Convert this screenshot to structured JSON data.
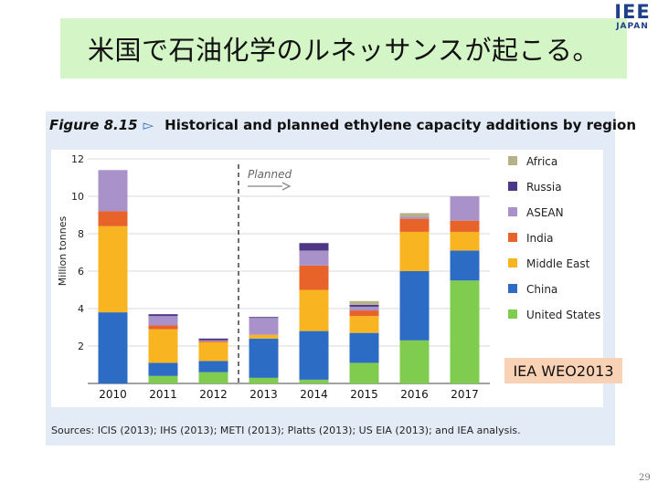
{
  "slide": {
    "title": "米国で石油化学のルネッサンスが起こる。",
    "logo_line1": "IEE",
    "logo_line2": "JAPAN",
    "source_badge": "IEA WEO2013",
    "page_number": "29"
  },
  "figure": {
    "number": "Figure 8.15",
    "marker": "▻",
    "caption": "Historical and planned ethylene capacity additions by region",
    "sources": "Sources: ICIS (2013); IHS (2013); METI (2013); Platts (2013); US EIA (2013); and IEA analysis."
  },
  "chart_data": {
    "type": "bar",
    "stacked": true,
    "categories": [
      "2010",
      "2011",
      "2012",
      "2013",
      "2014",
      "2015",
      "2016",
      "2017"
    ],
    "ylabel": "Million tonnes",
    "ylim": [
      0,
      12
    ],
    "yticks": [
      2,
      4,
      6,
      8,
      10,
      12
    ],
    "annotation": "Planned",
    "planned_from": "2013",
    "legend_position": "right",
    "series": [
      {
        "name": "United States",
        "color": "#7fcc4f",
        "values": [
          0,
          0.4,
          0.6,
          0.3,
          0.2,
          1.1,
          2.3,
          5.5
        ]
      },
      {
        "name": "China",
        "color": "#2c6cc4",
        "values": [
          3.8,
          0.7,
          0.6,
          2.1,
          2.6,
          1.6,
          3.7,
          1.6
        ]
      },
      {
        "name": "Middle East",
        "color": "#f8b521",
        "values": [
          4.6,
          1.8,
          1.0,
          0.2,
          2.2,
          0.9,
          2.1,
          1.0
        ]
      },
      {
        "name": "India",
        "color": "#e8632a",
        "values": [
          0.8,
          0.2,
          0.05,
          0,
          1.3,
          0.3,
          0.7,
          0.6
        ]
      },
      {
        "name": "ASEAN",
        "color": "#a992c9",
        "values": [
          2.2,
          0.5,
          0.05,
          0.9,
          0.8,
          0.2,
          0.1,
          1.3
        ]
      },
      {
        "name": "Russia",
        "color": "#4e3886",
        "values": [
          0,
          0.1,
          0.1,
          0.05,
          0.4,
          0.1,
          0,
          0
        ]
      },
      {
        "name": "Africa",
        "color": "#b5b28a",
        "values": [
          0,
          0,
          0,
          0,
          0,
          0.2,
          0.2,
          0
        ]
      }
    ]
  }
}
